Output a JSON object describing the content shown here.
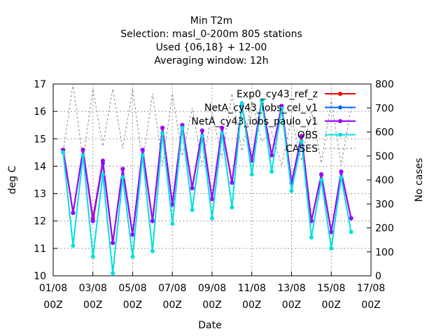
{
  "chart_data": {
    "type": "line",
    "title": [
      "Min T2m",
      "Selection: masl_0-200m    805 stations",
      "Used {06,18} + 12-00",
      "Averaging window: 12h"
    ],
    "xlabel": "Date",
    "ylabel": "deg C",
    "y2label": "No cases",
    "ylim": [
      10,
      17
    ],
    "y2lim": [
      0,
      800
    ],
    "y_ticks": [
      "10",
      "11",
      "12",
      "13",
      "14",
      "15",
      "16",
      "17"
    ],
    "y2_ticks": [
      "0",
      "100",
      "200",
      "300",
      "400",
      "500",
      "600",
      "700",
      "800"
    ],
    "x_ticks": [
      {
        "date": "01/08",
        "hour": "00Z"
      },
      {
        "date": "03/08",
        "hour": "00Z"
      },
      {
        "date": "05/08",
        "hour": "00Z"
      },
      {
        "date": "07/08",
        "hour": "00Z"
      },
      {
        "date": "09/08",
        "hour": "00Z"
      },
      {
        "date": "11/08",
        "hour": "00Z"
      },
      {
        "date": "13/08",
        "hour": "00Z"
      },
      {
        "date": "15/08",
        "hour": "00Z"
      },
      {
        "date": "17/08",
        "hour": "00Z"
      }
    ],
    "x": [
      "01/08 12Z",
      "02/08 00Z",
      "02/08 12Z",
      "03/08 00Z",
      "03/08 12Z",
      "04/08 00Z",
      "04/08 12Z",
      "05/08 00Z",
      "05/08 12Z",
      "06/08 00Z",
      "06/08 12Z",
      "07/08 00Z",
      "07/08 12Z",
      "08/08 00Z",
      "08/08 12Z",
      "09/08 00Z",
      "09/08 12Z",
      "10/08 00Z",
      "10/08 12Z",
      "11/08 00Z",
      "11/08 12Z",
      "12/08 00Z",
      "12/08 12Z",
      "13/08 00Z",
      "13/08 12Z",
      "14/08 00Z",
      "14/08 12Z",
      "15/08 00Z",
      "15/08 12Z",
      "16/08 00Z"
    ],
    "series": [
      {
        "name": "Exp0_cy43_ref_z",
        "color": "#ff0000",
        "axis": "y",
        "values": [
          14.6,
          12.3,
          14.6,
          12.1,
          14.2,
          11.2,
          13.9,
          11.5,
          14.6,
          12.0,
          15.4,
          12.6,
          15.5,
          13.2,
          15.3,
          12.8,
          15.4,
          13.4,
          16.2,
          14.2,
          16.4,
          14.4,
          16.2,
          13.4,
          15.1,
          12.0,
          13.7,
          11.6,
          13.8,
          12.1
        ]
      },
      {
        "name": "NetA_cy43_iobs_cel_v1",
        "color": "#0066ff",
        "axis": "y",
        "values": [
          14.6,
          12.3,
          14.6,
          12.0,
          14.1,
          11.2,
          13.9,
          11.5,
          14.6,
          12.0,
          15.4,
          12.6,
          15.5,
          13.2,
          15.3,
          12.8,
          15.4,
          13.4,
          16.2,
          14.2,
          16.4,
          14.4,
          16.2,
          13.4,
          15.1,
          12.0,
          13.7,
          11.6,
          13.8,
          12.1
        ]
      },
      {
        "name": "NetA_cy43_iobs_paulo_v1",
        "color": "#a000ff",
        "axis": "y",
        "values": [
          14.6,
          12.3,
          14.6,
          12.0,
          14.2,
          11.2,
          13.9,
          11.5,
          14.6,
          12.0,
          15.4,
          12.6,
          15.5,
          13.2,
          15.3,
          12.8,
          15.4,
          13.4,
          16.2,
          14.2,
          16.4,
          14.4,
          16.2,
          13.4,
          15.1,
          12.0,
          13.7,
          11.6,
          13.8,
          12.1
        ]
      },
      {
        "name": "OBS",
        "color": "#00e0e0",
        "axis": "y",
        "values": [
          14.5,
          11.1,
          14.4,
          10.7,
          13.7,
          10.1,
          13.6,
          10.7,
          14.4,
          10.9,
          15.2,
          11.9,
          15.4,
          12.4,
          15.1,
          12.1,
          15.2,
          12.5,
          16.3,
          13.7,
          16.4,
          13.8,
          16.1,
          13.1,
          14.9,
          11.4,
          13.5,
          11.0,
          13.6,
          11.6
        ]
      },
      {
        "name": "CASES",
        "color": "#888888",
        "axis": "y2",
        "dashed": true,
        "values": [
          520,
          800,
          480,
          780,
          540,
          780,
          530,
          780,
          470,
          760,
          460,
          760,
          500,
          700,
          460,
          680,
          490,
          760,
          520,
          730,
          560,
          600,
          460,
          660,
          480,
          690,
          470,
          730,
          460,
          700
        ]
      }
    ],
    "grid": true,
    "legend": "top-right"
  }
}
